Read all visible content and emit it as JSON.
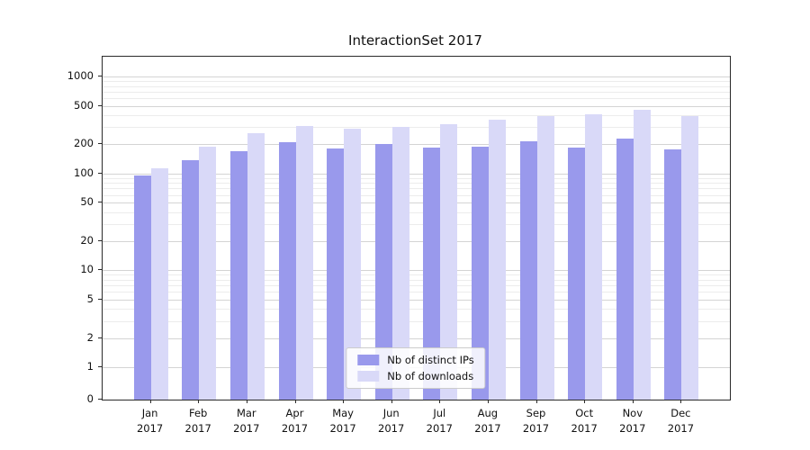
{
  "chart_data": {
    "type": "bar",
    "title": "InteractionSet 2017",
    "categories": [
      "Jan",
      "Feb",
      "Mar",
      "Apr",
      "May",
      "Jun",
      "Jul",
      "Aug",
      "Sep",
      "Oct",
      "Nov",
      "Dec"
    ],
    "year": "2017",
    "series": [
      {
        "name": "Nb of distinct IPs",
        "color": "#9999ec",
        "values": [
          95,
          138,
          170,
          212,
          180,
          200,
          185,
          188,
          215,
          186,
          230,
          178
        ]
      },
      {
        "name": "Nb of downloads",
        "color": "#d9d9f8",
        "values": [
          113,
          190,
          260,
          310,
          290,
          300,
          325,
          360,
          395,
          405,
          450,
          395
        ]
      }
    ],
    "yscale": "symlog",
    "yticks": [
      0,
      1,
      2,
      5,
      10,
      20,
      50,
      100,
      200,
      500,
      1000
    ],
    "ylim": [
      0,
      1150
    ],
    "xlabel": "",
    "ylabel": "",
    "grid": "both",
    "legend_position": "lower center"
  }
}
